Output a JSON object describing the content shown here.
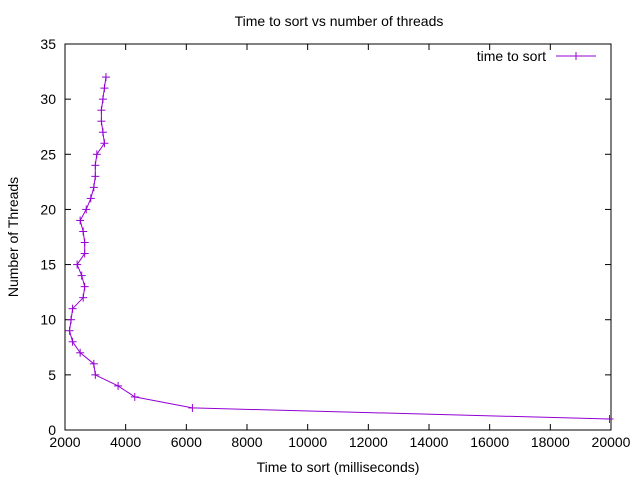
{
  "chart_data": {
    "type": "line",
    "title": "Time to sort vs number of threads",
    "xlabel": "Time to sort (milliseconds)",
    "ylabel": "Number of Threads",
    "xlim": [
      2000,
      20000
    ],
    "ylim": [
      0,
      35
    ],
    "xticks": [
      2000,
      4000,
      6000,
      8000,
      10000,
      12000,
      14000,
      16000,
      18000,
      20000
    ],
    "yticks": [
      0,
      5,
      10,
      15,
      20,
      25,
      30,
      35
    ],
    "grid": false,
    "legend_position": "top-right",
    "series": [
      {
        "name": "time to sort",
        "color": "#9400D3",
        "marker": "plus",
        "x": [
          19950,
          6200,
          4300,
          3750,
          3000,
          2950,
          2500,
          2250,
          2150,
          2200,
          2250,
          2600,
          2650,
          2550,
          2400,
          2650,
          2650,
          2600,
          2500,
          2700,
          2850,
          2950,
          3000,
          3000,
          3050,
          3300,
          3250,
          3200,
          3200,
          3250,
          3300,
          3350
        ],
        "y": [
          1,
          2,
          3,
          4,
          5,
          6,
          7,
          8,
          9,
          10,
          11,
          12,
          13,
          14,
          15,
          16,
          17,
          18,
          19,
          20,
          21,
          22,
          23,
          24,
          25,
          26,
          27,
          28,
          29,
          30,
          31,
          32
        ]
      }
    ]
  }
}
